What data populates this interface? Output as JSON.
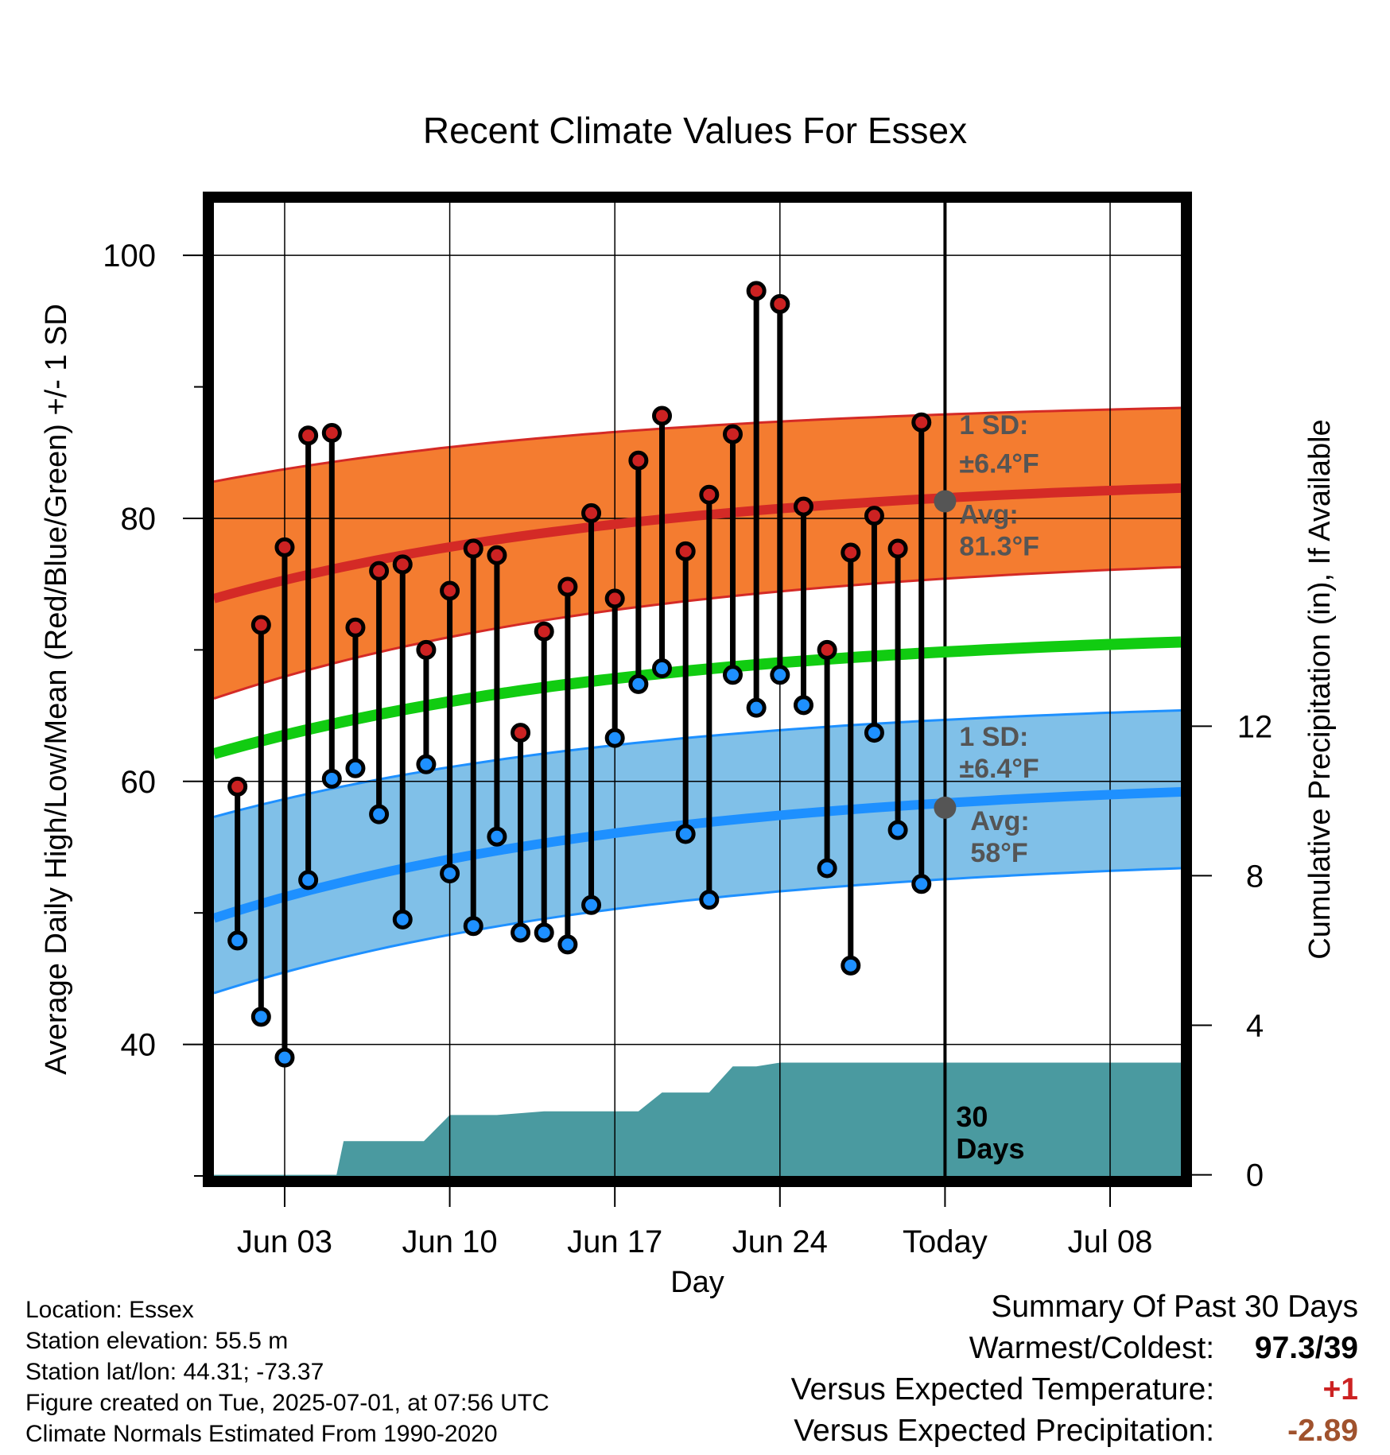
{
  "chart_data": {
    "type": "line",
    "title": "Recent Climate Values For Essex",
    "xlabel": "Day",
    "ylabel": "Average Daily High/Low/Mean (Red/Blue/Green) +/- 1 SD",
    "y2label": "Cumulative Precipitation (in), If Available",
    "ylim": [
      30,
      104
    ],
    "y2lim": [
      -0.03,
      26
    ],
    "y_ticks": [
      "40",
      "60",
      "80",
      "100"
    ],
    "y2_ticks": [
      "0",
      "4",
      "8",
      "12"
    ],
    "x_tick_labels": [
      "Jun 03",
      "Jun 10",
      "Jun 17",
      "Jun 24",
      "Today",
      "Jul 08"
    ],
    "x_tick_days": [
      3,
      10,
      17,
      24,
      31,
      38
    ],
    "xlim": [
      0,
      41
    ],
    "today_day": 31,
    "grid": true,
    "observed": {
      "days": [
        1,
        2,
        3,
        4,
        5,
        6,
        7,
        8,
        9,
        10,
        11,
        12,
        13,
        14,
        15,
        16,
        17,
        18,
        19,
        20,
        21,
        22,
        23,
        24,
        25,
        26,
        27,
        28,
        29,
        30
      ],
      "highs": [
        59.6,
        71.9,
        77.8,
        86.3,
        86.5,
        71.7,
        76.0,
        76.5,
        70.0,
        74.5,
        77.7,
        77.2,
        63.7,
        71.4,
        74.8,
        80.4,
        73.9,
        84.4,
        87.8,
        77.5,
        81.8,
        86.4,
        97.3,
        96.3,
        80.9,
        70.0,
        77.4,
        80.2,
        77.7,
        87.3
      ],
      "lows": [
        47.9,
        42.1,
        39.0,
        52.5,
        60.2,
        61.0,
        57.5,
        49.5,
        61.3,
        53.0,
        49.0,
        55.8,
        48.5,
        48.5,
        47.6,
        50.6,
        63.3,
        67.4,
        68.6,
        56.0,
        51.0,
        68.1,
        65.6,
        68.1,
        65.8,
        53.4,
        46.0,
        63.7,
        56.3,
        52.2
      ]
    },
    "normals": {
      "days": [
        0,
        41
      ],
      "avg_high": [
        73.9,
        82.3
      ],
      "high_sd_upper": [
        82.8,
        88.4
      ],
      "high_sd_lower": [
        66.3,
        76.3
      ],
      "avg_mean": [
        62.1,
        70.6
      ],
      "avg_low": [
        49.6,
        59.2
      ],
      "low_sd_upper": [
        57.3,
        65.4
      ],
      "low_sd_lower": [
        43.9,
        53.4
      ]
    },
    "precip": {
      "days": [
        0,
        5.2,
        5.5,
        8.9,
        10.0,
        12.0,
        14.0,
        17.0,
        18.0,
        19.0,
        21.0,
        22.0,
        23.0,
        24.0,
        41.0
      ],
      "cumulative": [
        0,
        0,
        0.9,
        0.9,
        1.6,
        1.6,
        1.7,
        1.7,
        1.7,
        2.2,
        2.2,
        2.9,
        2.9,
        3.0,
        3.0
      ]
    },
    "today_markers": {
      "avg_high": 81.3,
      "avg_low": 58.0
    },
    "annotations": {
      "high_sd": [
        "1 SD:",
        "±6.4°F"
      ],
      "high_avg": [
        "Avg:",
        "81.3°F"
      ],
      "low_sd": [
        "1 SD:",
        "±6.4°F"
      ],
      "low_avg": [
        "Avg:",
        "58°F"
      ],
      "days": [
        "30",
        "Days"
      ]
    },
    "colors": {
      "high_band": "#f47c30",
      "avg_high_line": "#d42a26",
      "avg_mean_line": "#11cc11",
      "low_band": "#80c0e8",
      "avg_low_line": "#1e90ff",
      "precip": "#4a9aa0",
      "high_dot": "#cc2222",
      "low_dot": "#1e90ff",
      "today_marker": "#555555"
    }
  },
  "info": {
    "location": "Location: Essex",
    "elevation": "Station elevation: 55.5 m",
    "latlon": "Station lat/lon: 44.31; -73.37",
    "created": "Figure created on Tue, 2025-07-01, at 07:56 UTC",
    "normals_period": "Climate Normals Estimated From 1990-2020"
  },
  "summary": {
    "title": "Summary Of Past 30 Days",
    "warm_cold_label": "Warmest/Coldest:",
    "warm_cold_value": "97.3/39",
    "temp_label": "Versus Expected Temperature:",
    "temp_value": "+1",
    "precip_label": "Versus Expected Precipitation:",
    "precip_value": "-2.89",
    "colors": {
      "temp_value": "#cc2222",
      "precip_value": "#a0522d"
    }
  }
}
